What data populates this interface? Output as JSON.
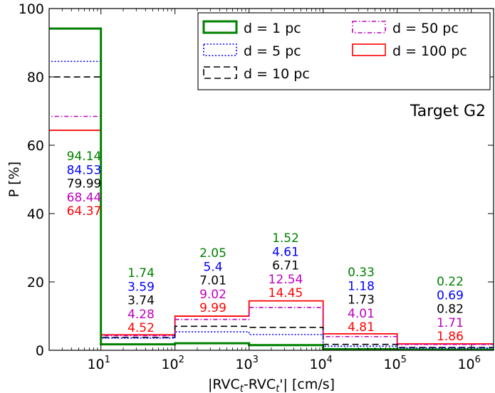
{
  "chart_data": {
    "type": "step",
    "title": "Target G2",
    "xlabel": "|RVC",
    "xlabel_sub1": "t",
    "xlabel_mid": "-RVC",
    "xlabel_sub2": "t",
    "xlabel_end": "'| [cm/s]",
    "ylabel": "P [%]",
    "xscale": "log",
    "xlim": [
      2,
      2000000
    ],
    "ylim": [
      0,
      100
    ],
    "yticks": [
      "0",
      "20",
      "40",
      "60",
      "80",
      "100"
    ],
    "xticks": [
      {
        "base": "10",
        "exp": "1"
      },
      {
        "base": "10",
        "exp": "2"
      },
      {
        "base": "10",
        "exp": "3"
      },
      {
        "base": "10",
        "exp": "4"
      },
      {
        "base": "10",
        "exp": "5"
      },
      {
        "base": "10",
        "exp": "6"
      }
    ],
    "bin_edges": [
      0.001,
      10,
      100,
      1000,
      10000,
      100000,
      10000000
    ],
    "series": [
      {
        "name": "d = 1 pc",
        "color": "#008000",
        "dash": "solid",
        "values": [
          94.14,
          1.74,
          2.05,
          1.52,
          0.33,
          0.22
        ],
        "labels": [
          "94.14",
          "1.74",
          "2.05",
          "1.52",
          "0.33",
          "0.22"
        ]
      },
      {
        "name": "d = 5 pc",
        "color": "#0000ff",
        "dash": "dotted",
        "values": [
          84.53,
          3.59,
          5.4,
          4.61,
          1.18,
          0.69
        ],
        "labels": [
          "84.53",
          "3.59",
          "5.4",
          "4.61",
          "1.18",
          "0.69"
        ]
      },
      {
        "name": "d = 10 pc",
        "color": "#000000",
        "dash": "dashed",
        "values": [
          79.99,
          3.74,
          7.01,
          6.71,
          1.73,
          0.82
        ],
        "labels": [
          "79.99",
          "3.74",
          "7.01",
          "6.71",
          "1.73",
          "0.82"
        ]
      },
      {
        "name": "d = 50 pc",
        "color": "#bf00bf",
        "dash": "dashdot",
        "values": [
          68.44,
          4.28,
          9.02,
          12.54,
          4.01,
          1.71
        ],
        "labels": [
          "68.44",
          "4.28",
          "9.02",
          "12.54",
          "4.01",
          "1.71"
        ]
      },
      {
        "name": "d = 100 pc",
        "color": "#ff0000",
        "dash": "solid",
        "values": [
          64.37,
          4.52,
          9.99,
          14.45,
          4.81,
          1.86
        ],
        "labels": [
          "64.37",
          "4.52",
          "9.99",
          "14.45",
          "4.81",
          "1.86"
        ]
      }
    ],
    "legend": {
      "position": "top-right",
      "columns": 2
    }
  }
}
